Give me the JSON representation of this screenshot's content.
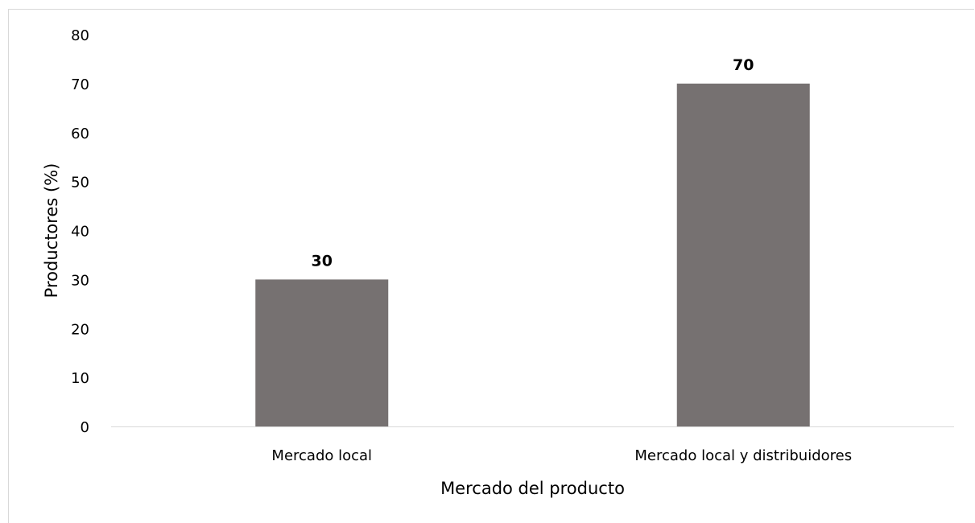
{
  "chart_data": {
    "type": "bar",
    "title": "",
    "categories": [
      "Mercado local",
      "Mercado local y distribuidores"
    ],
    "values": [
      30,
      70
    ],
    "data_labels": [
      "30",
      "70"
    ],
    "xlabel": "Mercado del producto",
    "ylabel": "Productores (%)",
    "ylim": [
      0,
      80
    ],
    "yticks": [
      0,
      10,
      20,
      30,
      40,
      50,
      60,
      70,
      80
    ],
    "grid": false,
    "legend": "none",
    "bar_color": "#767171"
  }
}
